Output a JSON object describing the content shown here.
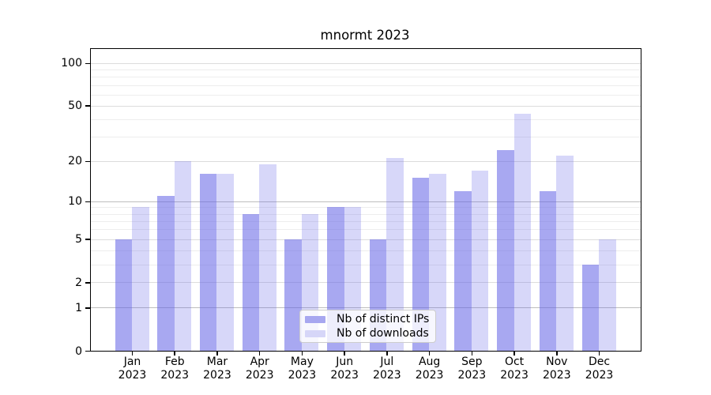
{
  "chart_data": {
    "type": "bar",
    "title": "mnormt 2023",
    "xlabel": "",
    "ylabel": "",
    "categories": [
      "Jan 2023",
      "Feb 2023",
      "Mar 2023",
      "Apr 2023",
      "May 2023",
      "Jun 2023",
      "Jul 2023",
      "Aug 2023",
      "Sep 2023",
      "Oct 2023",
      "Nov 2023",
      "Dec 2023"
    ],
    "x_months": [
      "Jan",
      "Feb",
      "Mar",
      "Apr",
      "May",
      "Jun",
      "Jul",
      "Aug",
      "Sep",
      "Oct",
      "Nov",
      "Dec"
    ],
    "x_year": "2023",
    "series": [
      {
        "name": "Nb of distinct IPs",
        "values": [
          5,
          11,
          16,
          8,
          5,
          9,
          5,
          15,
          12,
          24,
          12,
          3
        ]
      },
      {
        "name": "Nb of downloads",
        "values": [
          9,
          20,
          16,
          19,
          8,
          9,
          21,
          16,
          17,
          44,
          22,
          5
        ]
      }
    ],
    "y_axis": {
      "scale": "log1p",
      "ylim": [
        0,
        126
      ],
      "ticks": [
        0,
        1,
        2,
        5,
        10,
        20,
        50,
        100
      ],
      "gridlines_major": [
        1,
        10
      ],
      "gridlines_labeled": [
        2,
        5,
        20,
        50,
        100
      ],
      "gridlines_minor": [
        3,
        4,
        6,
        7,
        8,
        9,
        30,
        40,
        60,
        70,
        80,
        90
      ],
      "grid": true
    },
    "legend_position": "lower center"
  },
  "colors": {
    "bar_ips": "rgba(99, 99, 230, 0.56)",
    "bar_downloads": "rgba(99, 99, 230, 0.26)",
    "swatch_ips": "#a7a7f0",
    "swatch_downloads": "#d6d6f8",
    "axis": "#000000",
    "grid_major": "#bdbdbd",
    "grid_labeled": "#dcdcdc",
    "grid_minor": "#ededed"
  }
}
